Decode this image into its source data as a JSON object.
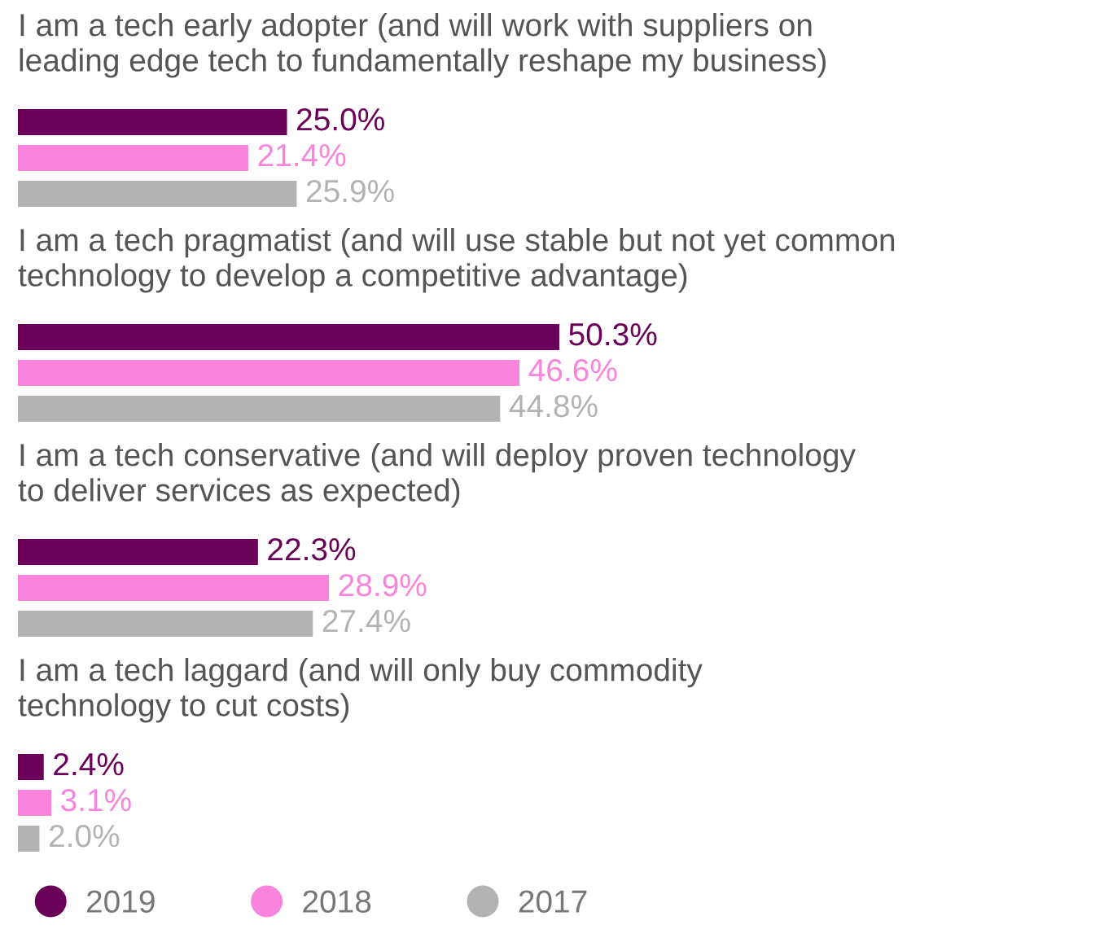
{
  "chart_data": {
    "type": "bar",
    "orientation": "horizontal",
    "categories": [
      "I am a tech early adopter (and will work with suppliers on\nleading edge tech to fundamentally reshape my business)",
      "I am a tech pragmatist (and will use stable but not yet common\ntechnology to develop a competitive advantage)",
      "I am a tech conservative (and will deploy proven technology\nto deliver services as expected)",
      "I am a tech laggard (and will only buy commodity\ntechnology to cut costs)"
    ],
    "series": [
      {
        "name": "2019",
        "color": "#6b0059",
        "values": [
          25.0,
          50.3,
          22.3,
          2.4
        ],
        "value_labels": [
          "25.0%",
          "50.3%",
          "22.3%",
          "2.4%"
        ]
      },
      {
        "name": "2018",
        "color": "#f984dc",
        "values": [
          21.4,
          46.6,
          28.9,
          3.1
        ],
        "value_labels": [
          "21.4%",
          "46.6%",
          "28.9%",
          "3.1%"
        ]
      },
      {
        "name": "2017",
        "color": "#b3b3b3",
        "values": [
          25.9,
          44.8,
          27.4,
          2.0
        ],
        "value_labels": [
          "25.9%",
          "44.8%",
          "27.4%",
          "2.0%"
        ]
      }
    ],
    "legend": "bottom",
    "marker": "circle"
  }
}
